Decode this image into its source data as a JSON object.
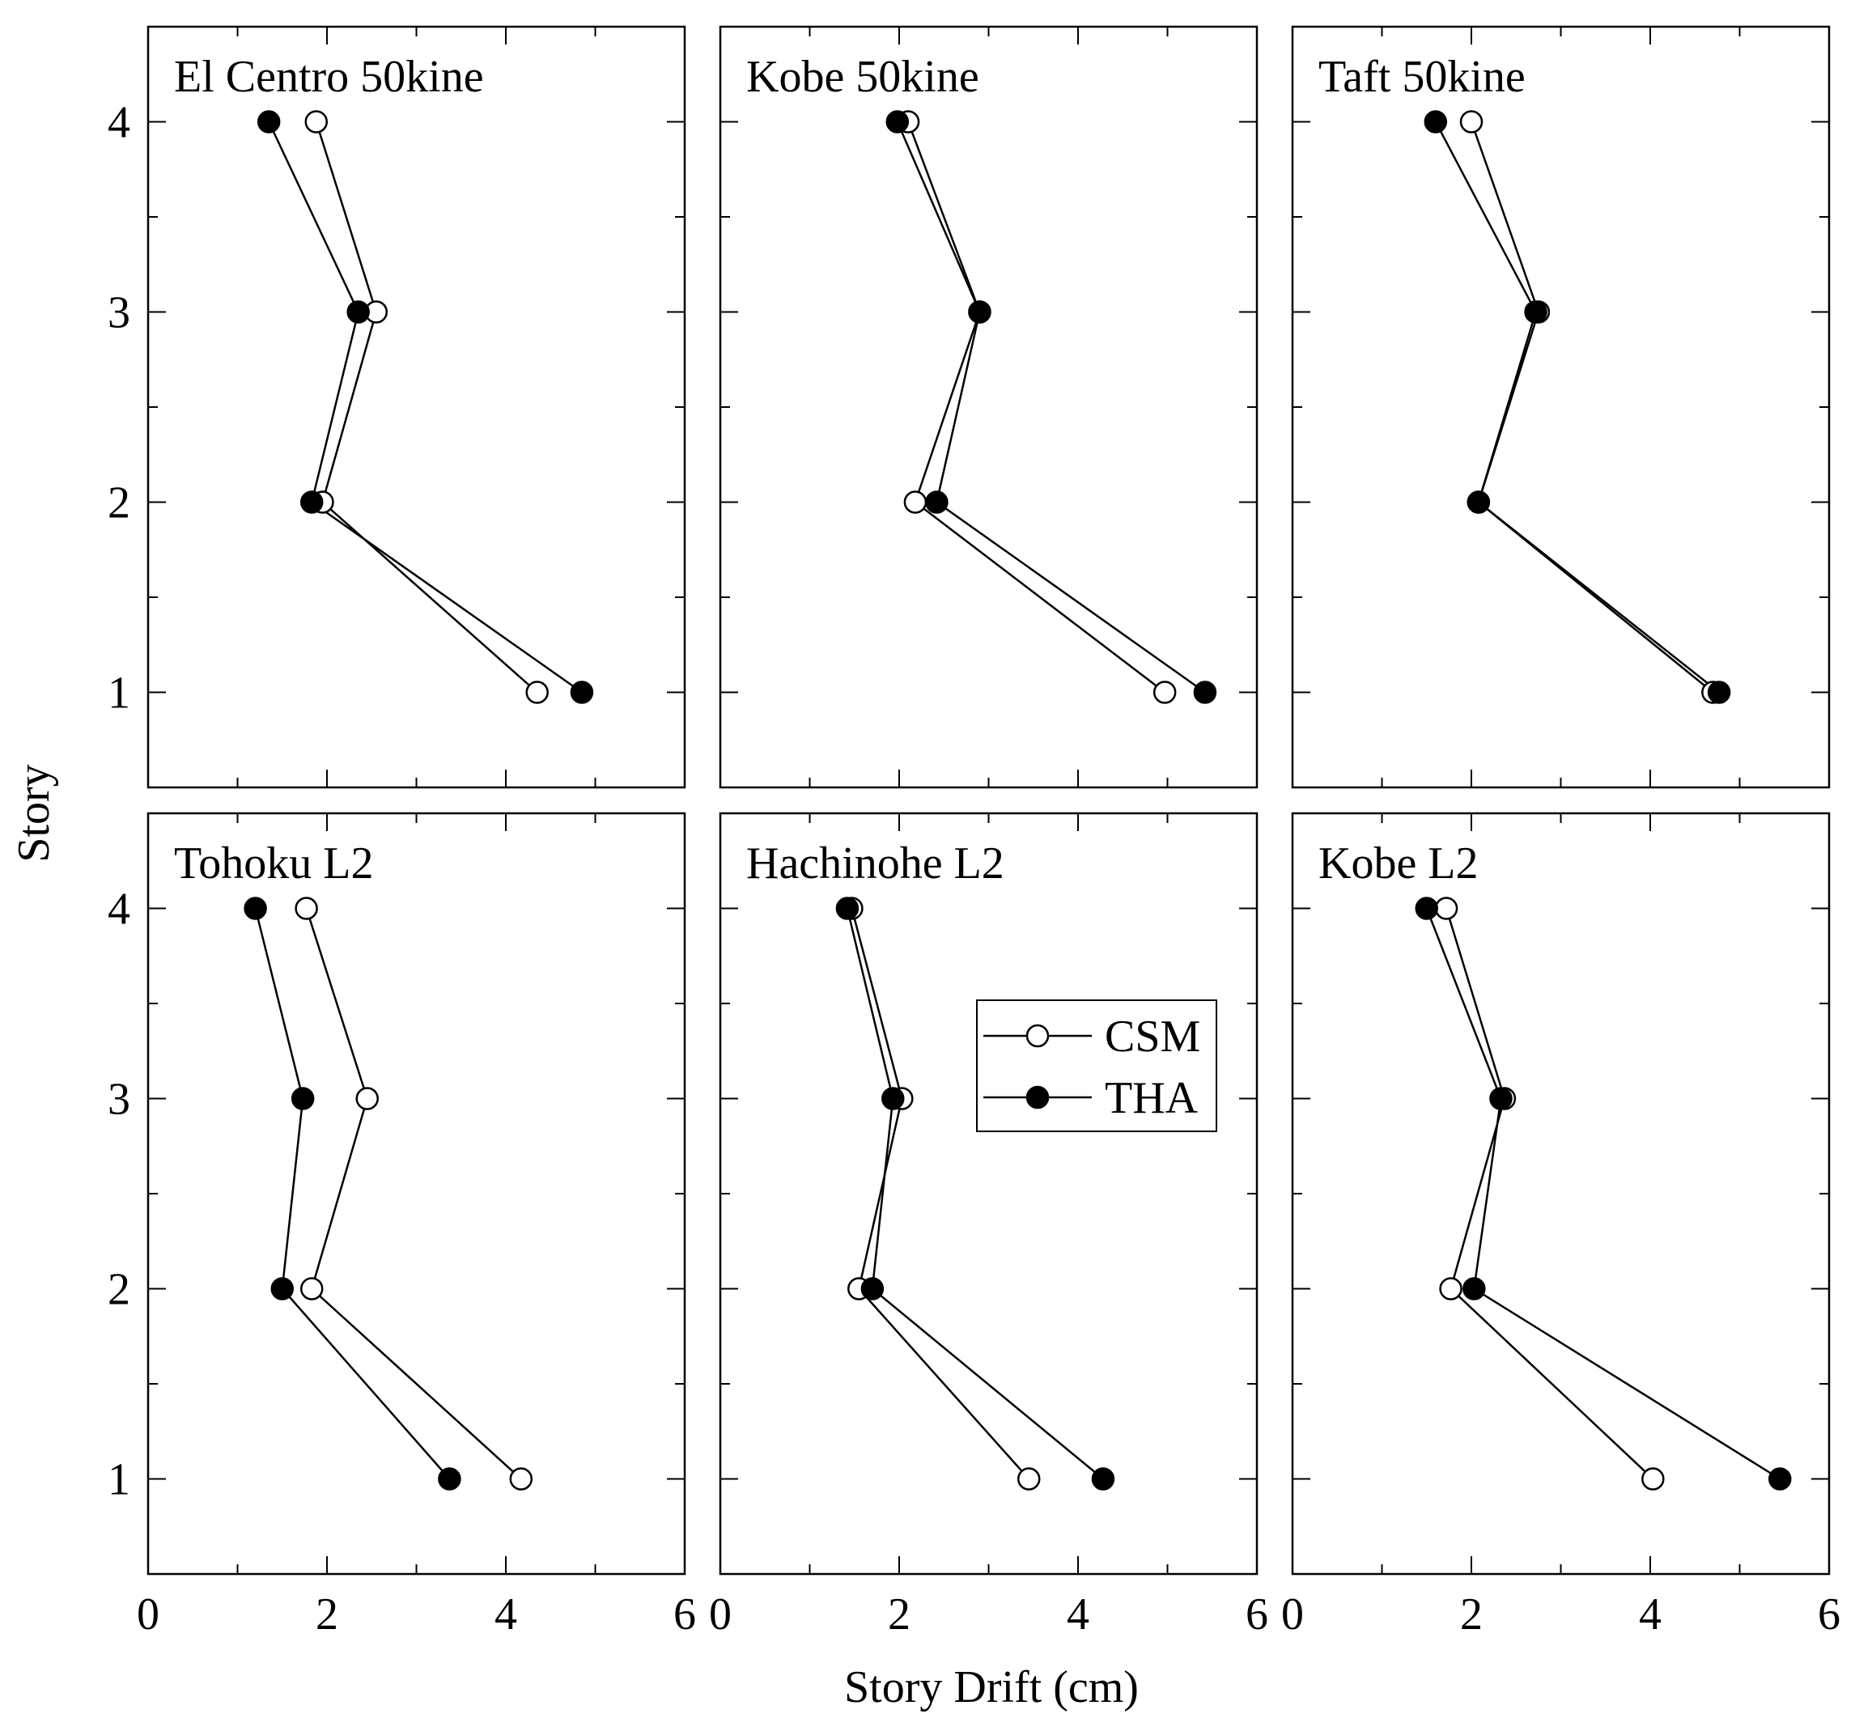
{
  "chart_data": {
    "type": "line",
    "xlabel": "Story Drift (cm)",
    "ylabel": "Story",
    "xlim": [
      0,
      6
    ],
    "ylim": [
      0.5,
      4.5
    ],
    "x_ticks": [
      "0",
      "2",
      "4",
      "6"
    ],
    "y_ticks": [
      "1",
      "2",
      "3",
      "4"
    ],
    "stories": [
      1,
      2,
      3,
      4
    ],
    "legend": {
      "position": "center-left of bottom-middle panel",
      "entries": [
        {
          "name": "CSM",
          "marker": "open-circle"
        },
        {
          "name": "THA",
          "marker": "filled-circle"
        }
      ]
    },
    "panels": [
      {
        "title": "El Centro 50kine",
        "series": [
          {
            "name": "CSM",
            "values": [
              4.35,
              1.95,
              2.55,
              1.88
            ]
          },
          {
            "name": "THA",
            "values": [
              4.85,
              1.83,
              2.35,
              1.35
            ]
          }
        ]
      },
      {
        "title": "Kobe 50kine",
        "series": [
          {
            "name": "CSM",
            "values": [
              4.97,
              2.18,
              2.9,
              2.1
            ]
          },
          {
            "name": "THA",
            "values": [
              5.42,
              2.42,
              2.9,
              1.98
            ]
          }
        ]
      },
      {
        "title": "Taft 50kine",
        "series": [
          {
            "name": "CSM",
            "values": [
              4.7,
              2.08,
              2.75,
              2.0
            ]
          },
          {
            "name": "THA",
            "values": [
              4.77,
              2.08,
              2.72,
              1.6
            ]
          }
        ]
      },
      {
        "title": "Tohoku L2",
        "series": [
          {
            "name": "CSM",
            "values": [
              4.17,
              1.83,
              2.45,
              1.77
            ]
          },
          {
            "name": "THA",
            "values": [
              3.37,
              1.5,
              1.73,
              1.2
            ]
          }
        ]
      },
      {
        "title": "Hachinohe L2",
        "series": [
          {
            "name": "CSM",
            "values": [
              3.45,
              1.55,
              2.03,
              1.47
            ]
          },
          {
            "name": "THA",
            "values": [
              4.28,
              1.7,
              1.93,
              1.42
            ]
          }
        ]
      },
      {
        "title": "Kobe L2",
        "series": [
          {
            "name": "CSM",
            "values": [
              4.03,
              1.77,
              2.37,
              1.72
            ]
          },
          {
            "name": "THA",
            "values": [
              5.45,
              2.03,
              2.33,
              1.5
            ]
          }
        ]
      }
    ]
  }
}
